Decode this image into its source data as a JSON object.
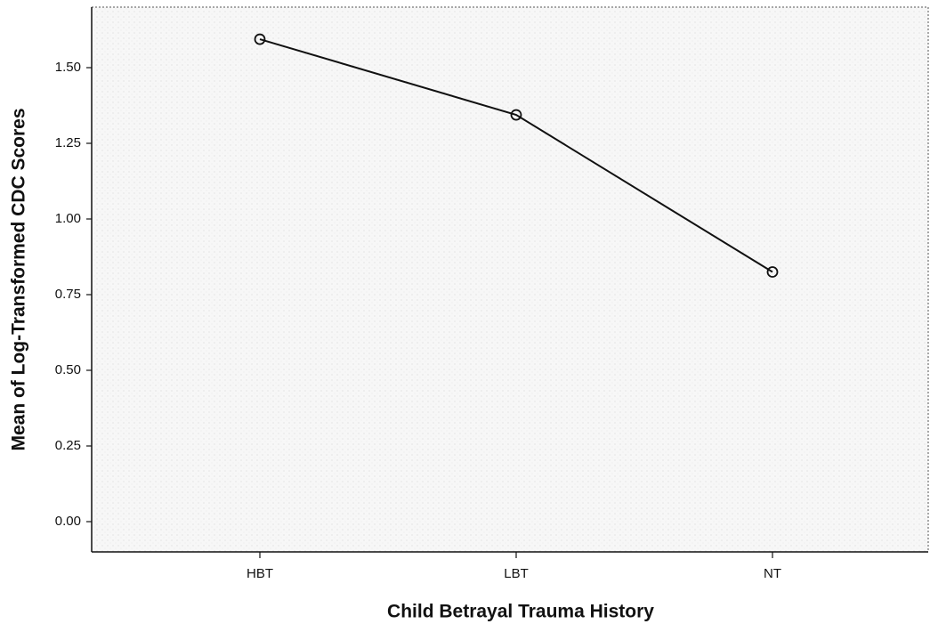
{
  "chart_data": {
    "type": "line",
    "x_label": "Child Betrayal Trauma History",
    "y_label": "Mean of Log-Transformed CDC Scores",
    "categories": [
      "HBT",
      "LBT",
      "NT"
    ],
    "values": [
      1.594,
      1.344,
      0.825
    ],
    "color": "#111111",
    "ylim": [
      -0.1,
      1.7
    ],
    "yticks": [
      {
        "value": 0,
        "label": "0.00"
      },
      {
        "value": 0.25,
        "label": "0.25"
      },
      {
        "value": 0.5,
        "label": "0.50"
      },
      {
        "value": 0.75,
        "label": "0.75"
      },
      {
        "value": 1,
        "label": "1.00"
      },
      {
        "value": 1.25,
        "label": "1.25"
      },
      {
        "value": 1.5,
        "label": "1.50"
      }
    ],
    "grid": false
  }
}
